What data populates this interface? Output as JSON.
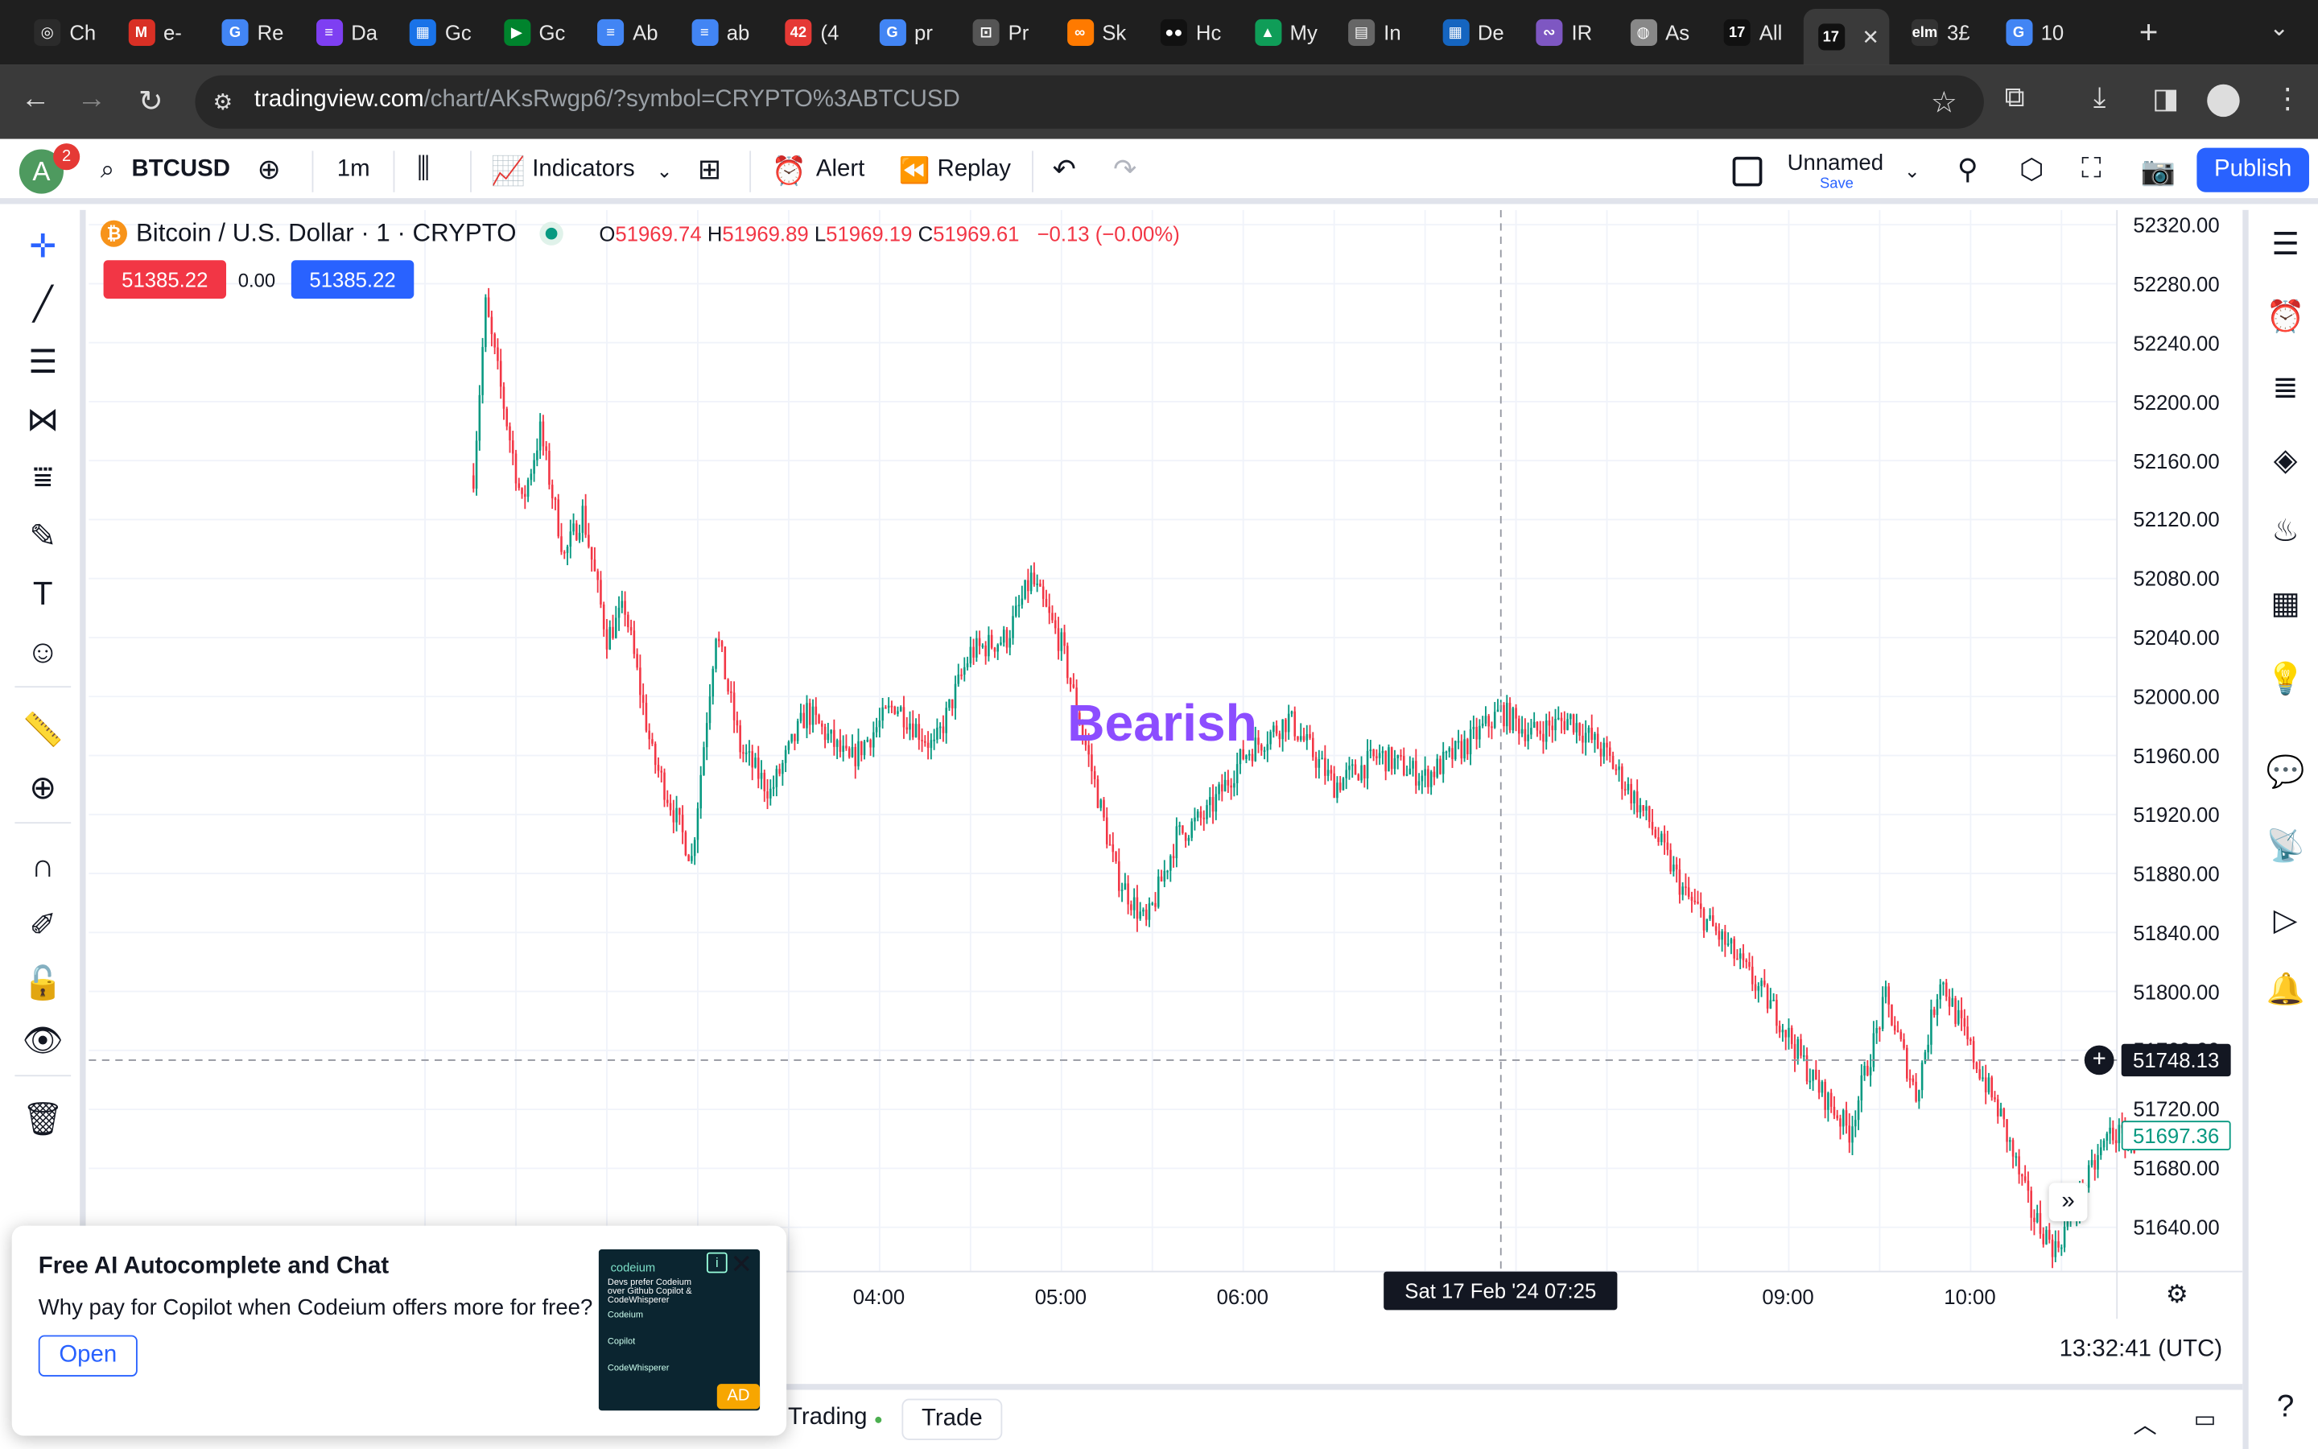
{
  "browser": {
    "tabs": [
      {
        "label": "Ch",
        "icon": "chatgpt-icon",
        "color": "#2b2b2b"
      },
      {
        "label": "e-",
        "icon": "gmail-icon",
        "color": "#d93025"
      },
      {
        "label": "Re",
        "icon": "google-icon",
        "color": "#4285f4"
      },
      {
        "label": "Da",
        "icon": "forms-icon",
        "color": "#7e3ff2"
      },
      {
        "label": "Gc",
        "icon": "calendar-icon",
        "color": "#1a73e8"
      },
      {
        "label": "Gc",
        "icon": "meet-icon",
        "color": "#00832d"
      },
      {
        "label": "Ab",
        "icon": "docs-icon",
        "color": "#4285f4"
      },
      {
        "label": "ab",
        "icon": "docs-icon",
        "color": "#4285f4"
      },
      {
        "label": "(4",
        "icon": "notifications-icon",
        "color": "#e53935"
      },
      {
        "label": "pr",
        "icon": "google-icon",
        "color": "#4285f4"
      },
      {
        "label": "Pr",
        "icon": "lock-page-icon",
        "color": "#555"
      },
      {
        "label": "Sk",
        "icon": "infinity-icon",
        "color": "#ff7a00"
      },
      {
        "label": "Hc",
        "icon": "medium-icon",
        "color": "#111"
      },
      {
        "label": "My",
        "icon": "drive-icon",
        "color": "#0f9d58"
      },
      {
        "label": "In",
        "icon": "doc-icon",
        "color": "#666"
      },
      {
        "label": "De",
        "icon": "sheet-icon",
        "color": "#1565c0"
      },
      {
        "label": "IR",
        "icon": "ribbon-icon",
        "color": "#7e57c2"
      },
      {
        "label": "As",
        "icon": "globe-icon",
        "color": "#888"
      },
      {
        "label": "All",
        "icon": "tradingview-icon",
        "color": "#111"
      },
      {
        "label": "",
        "icon": "tradingview-icon",
        "color": "#111",
        "active": true
      },
      {
        "label": "3£",
        "icon": "elm-icon",
        "color": "#333"
      },
      {
        "label": "10",
        "icon": "google-icon",
        "color": "#4285f4"
      }
    ],
    "url_domain": "tradingview.com",
    "url_path": "/chart/AKsRwgp6/?symbol=CRYPTO%3ABTCUSD"
  },
  "toolbar": {
    "avatar_letter": "A",
    "notification_count": "2",
    "symbol": "BTCUSD",
    "interval": "1m",
    "indicators_label": "Indicators",
    "alert_label": "Alert",
    "replay_label": "Replay",
    "layout_name": "Unnamed",
    "save_label": "Save",
    "publish_label": "Publish"
  },
  "legend": {
    "instrument": "Bitcoin / U.S. Dollar · 1 · CRYPTO",
    "o_key": "O",
    "o": "51969.74",
    "h_key": "H",
    "h": "51969.89",
    "l_key": "L",
    "l": "51969.19",
    "c_key": "C",
    "c": "51969.61",
    "change": "−0.13 (−0.00%)",
    "sell_price": "51385.22",
    "spread": "0.00",
    "buy_price": "51385.22"
  },
  "annotation_text": "Bearish",
  "crosshair": {
    "time_label": "Sat 17 Feb '24   07:25",
    "price_label": "51748.13"
  },
  "last_price": "51697.36",
  "time_display": "13:32:41 (UTC)",
  "bottom": {
    "trading_label": "Trading",
    "trade_label": "Trade"
  },
  "ad": {
    "title": "Free AI Autocomplete and Chat",
    "description": "Why pay for Copilot when Codeium offers more for free?",
    "open_label": "Open",
    "ad_label": "AD",
    "image_brand": "codeium",
    "image_headline": "Devs prefer Codeium over Github Copilot & CodeWhisperer",
    "image_rows": [
      "Codeium",
      "Copilot",
      "CodeWhisperer"
    ]
  },
  "chart_data": {
    "type": "candlestick",
    "symbol": "BTCUSD",
    "interval": "1m",
    "y_axis_ticks": [
      52320,
      52280,
      52240,
      52200,
      52160,
      52120,
      52080,
      52040,
      52000,
      51960,
      51920,
      51880,
      51840,
      51800,
      51760,
      51720,
      51680,
      51640
    ],
    "ylim": [
      51610,
      52330
    ],
    "x_axis_ticks": [
      "04:00",
      "05:00",
      "06:00",
      "09:00",
      "10:00"
    ],
    "up_color": "#089981",
    "down_color": "#f23645",
    "price_path": [
      {
        "t": "01:46",
        "p": 52150
      },
      {
        "t": "01:50",
        "p": 52265
      },
      {
        "t": "02:02",
        "p": 52130
      },
      {
        "t": "02:08",
        "p": 52180
      },
      {
        "t": "02:16",
        "p": 52095
      },
      {
        "t": "02:22",
        "p": 52125
      },
      {
        "t": "02:30",
        "p": 52040
      },
      {
        "t": "02:36",
        "p": 52060
      },
      {
        "t": "02:45",
        "p": 51960
      },
      {
        "t": "02:58",
        "p": 51890
      },
      {
        "t": "03:06",
        "p": 52045
      },
      {
        "t": "03:14",
        "p": 51965
      },
      {
        "t": "03:24",
        "p": 51935
      },
      {
        "t": "03:36",
        "p": 51990
      },
      {
        "t": "03:50",
        "p": 51955
      },
      {
        "t": "04:05",
        "p": 51995
      },
      {
        "t": "04:18",
        "p": 51965
      },
      {
        "t": "04:30",
        "p": 52030
      },
      {
        "t": "04:42",
        "p": 52040
      },
      {
        "t": "04:50",
        "p": 52080
      },
      {
        "t": "05:00",
        "p": 52035
      },
      {
        "t": "05:10",
        "p": 51950
      },
      {
        "t": "05:18",
        "p": 51880
      },
      {
        "t": "05:28",
        "p": 51845
      },
      {
        "t": "05:38",
        "p": 51905
      },
      {
        "t": "05:48",
        "p": 51920
      },
      {
        "t": "06:00",
        "p": 51960
      },
      {
        "t": "06:15",
        "p": 51985
      },
      {
        "t": "06:30",
        "p": 51940
      },
      {
        "t": "06:45",
        "p": 51960
      },
      {
        "t": "07:00",
        "p": 51945
      },
      {
        "t": "07:15",
        "p": 51970
      },
      {
        "t": "07:25",
        "p": 51990
      },
      {
        "t": "07:35",
        "p": 51975
      },
      {
        "t": "07:48",
        "p": 51985
      },
      {
        "t": "08:00",
        "p": 51960
      },
      {
        "t": "08:14",
        "p": 51915
      },
      {
        "t": "08:26",
        "p": 51865
      },
      {
        "t": "08:40",
        "p": 51830
      },
      {
        "t": "08:56",
        "p": 51785
      },
      {
        "t": "09:08",
        "p": 51740
      },
      {
        "t": "09:20",
        "p": 51705
      },
      {
        "t": "09:32",
        "p": 51795
      },
      {
        "t": "09:42",
        "p": 51730
      },
      {
        "t": "09:50",
        "p": 51810
      },
      {
        "t": "10:00",
        "p": 51760
      },
      {
        "t": "10:10",
        "p": 51715
      },
      {
        "t": "10:20",
        "p": 51650
      },
      {
        "t": "10:28",
        "p": 51625
      },
      {
        "t": "10:36",
        "p": 51660
      },
      {
        "t": "10:46",
        "p": 51705
      },
      {
        "t": "10:54",
        "p": 51697
      }
    ]
  }
}
